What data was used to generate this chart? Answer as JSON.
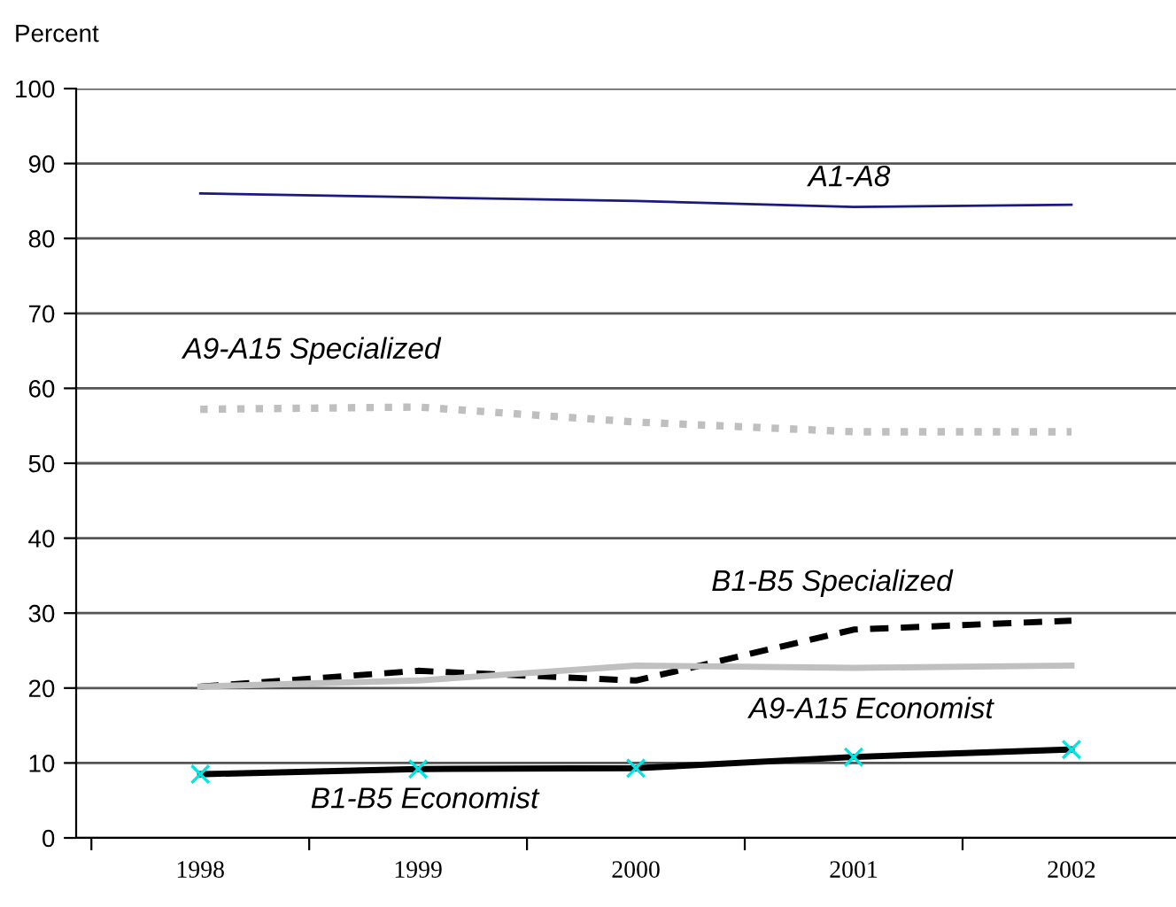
{
  "chart_data": {
    "type": "line",
    "ylabel": "Percent",
    "categories": [
      "1998",
      "1999",
      "2000",
      "2001",
      "2002"
    ],
    "series": [
      {
        "name": "A1-A8",
        "color": "#1a1a80",
        "line_style": "solid",
        "marker": "none",
        "values": [
          86,
          85.5,
          85,
          84.2,
          84.5
        ]
      },
      {
        "name": "A9-A15 Specialized",
        "color": "#bfbfbf",
        "line_style": "dotted",
        "marker": "none",
        "values": [
          57.2,
          57.5,
          55.5,
          54.2,
          54.2
        ]
      },
      {
        "name": "B1-B5 Specialized",
        "color": "#000000",
        "line_style": "dashed",
        "marker": "none",
        "values": [
          20.2,
          22.3,
          21,
          27.8,
          29
        ]
      },
      {
        "name": "A9-A15 Economist",
        "color": "#c0c0c0",
        "line_style": "solid",
        "marker": "none",
        "values": [
          20.2,
          21,
          23,
          22.7,
          23
        ]
      },
      {
        "name": "B1-B5 Economist",
        "color": "#000000",
        "line_style": "solid",
        "marker": "cross",
        "colors": [
          "#00e5e5",
          "#00e5e5",
          "#00e5e5",
          "#00e5e5",
          "#00e5e5"
        ],
        "values": [
          8.5,
          9.2,
          9.3,
          10.8,
          11.8
        ]
      }
    ],
    "ylim": [
      0,
      100
    ],
    "yticks": [
      0,
      10,
      20,
      30,
      40,
      50,
      60,
      70,
      80,
      90,
      100
    ],
    "grid": "y",
    "legend": false
  }
}
